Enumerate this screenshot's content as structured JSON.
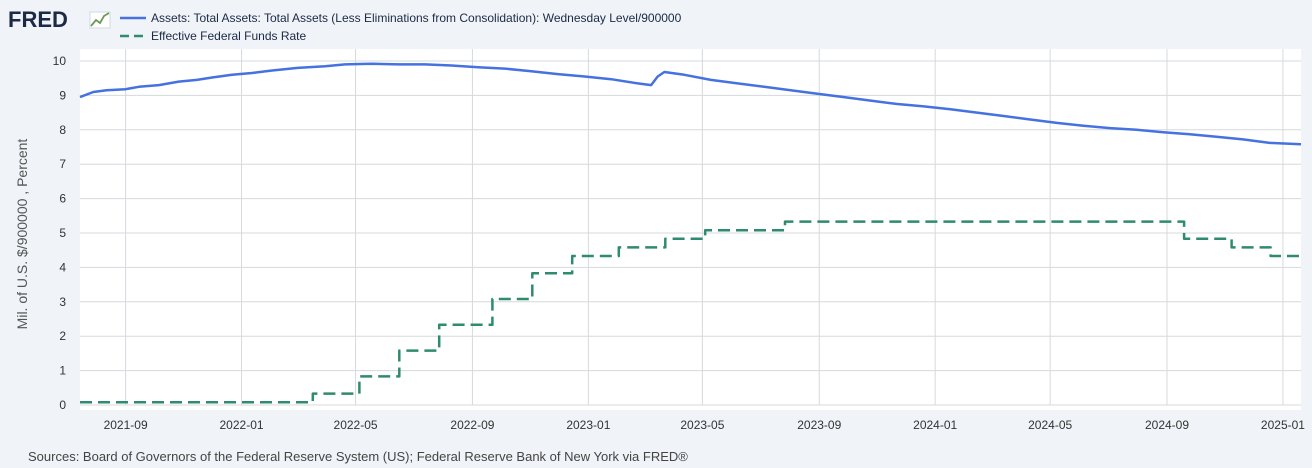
{
  "logo": {
    "text": "FRED"
  },
  "legend": [
    {
      "label": "Assets: Total Assets: Total Assets (Less Eliminations from Consolidation): Wednesday Level/900000",
      "color": "#4572e0",
      "style": "solid"
    },
    {
      "label": "Effective Federal Funds Rate",
      "color": "#2e8b6f",
      "style": "dashed"
    }
  ],
  "source_text": "Sources: Board of Governors of the Federal Reserve System (US); Federal Reserve Bank of New York via FRED®",
  "chart_data": {
    "type": "line",
    "ylabel": "Mil. of U.S. $/900000 , Percent",
    "ylim": [
      0,
      10
    ],
    "yticks": [
      0,
      1,
      2,
      3,
      4,
      5,
      6,
      7,
      8,
      9,
      10
    ],
    "xlim": [
      "2021-07-15",
      "2025-01-20"
    ],
    "xticks": [
      "2021-09",
      "2022-01",
      "2022-05",
      "2022-09",
      "2023-01",
      "2023-05",
      "2023-09",
      "2024-01",
      "2024-05",
      "2024-09",
      "2025-01"
    ],
    "grid": true,
    "legend_position": "top-left",
    "series": [
      {
        "name": "Assets: Total Assets: Total Assets (Less Eliminations from Consolidation): Wednesday Level/900000",
        "style": "solid",
        "color": "#4572e0",
        "points": [
          [
            "2021-07-15",
            8.95
          ],
          [
            "2021-07-29",
            9.1
          ],
          [
            "2021-08-12",
            9.15
          ],
          [
            "2021-09-01",
            9.18
          ],
          [
            "2021-09-15",
            9.25
          ],
          [
            "2021-10-06",
            9.3
          ],
          [
            "2021-10-27",
            9.4
          ],
          [
            "2021-11-15",
            9.45
          ],
          [
            "2021-12-01",
            9.52
          ],
          [
            "2021-12-22",
            9.6
          ],
          [
            "2022-01-12",
            9.65
          ],
          [
            "2022-02-01",
            9.72
          ],
          [
            "2022-03-01",
            9.8
          ],
          [
            "2022-03-30",
            9.85
          ],
          [
            "2022-04-20",
            9.9
          ],
          [
            "2022-05-18",
            9.92
          ],
          [
            "2022-06-15",
            9.9
          ],
          [
            "2022-07-13",
            9.9
          ],
          [
            "2022-08-10",
            9.87
          ],
          [
            "2022-09-07",
            9.82
          ],
          [
            "2022-10-05",
            9.78
          ],
          [
            "2022-11-02",
            9.7
          ],
          [
            "2022-11-30",
            9.62
          ],
          [
            "2022-12-28",
            9.55
          ],
          [
            "2023-01-25",
            9.47
          ],
          [
            "2023-02-22",
            9.35
          ],
          [
            "2023-03-08",
            9.3
          ],
          [
            "2023-03-15",
            9.55
          ],
          [
            "2023-03-22",
            9.68
          ],
          [
            "2023-04-12",
            9.6
          ],
          [
            "2023-05-10",
            9.45
          ],
          [
            "2023-06-07",
            9.35
          ],
          [
            "2023-07-05",
            9.25
          ],
          [
            "2023-08-02",
            9.15
          ],
          [
            "2023-08-30",
            9.05
          ],
          [
            "2023-09-27",
            8.95
          ],
          [
            "2023-10-25",
            8.85
          ],
          [
            "2023-11-22",
            8.75
          ],
          [
            "2023-12-20",
            8.68
          ],
          [
            "2024-01-17",
            8.6
          ],
          [
            "2024-02-14",
            8.5
          ],
          [
            "2024-03-13",
            8.4
          ],
          [
            "2024-04-10",
            8.3
          ],
          [
            "2024-05-08",
            8.2
          ],
          [
            "2024-06-05",
            8.12
          ],
          [
            "2024-07-03",
            8.05
          ],
          [
            "2024-07-31",
            8.0
          ],
          [
            "2024-08-28",
            7.93
          ],
          [
            "2024-09-25",
            7.87
          ],
          [
            "2024-10-23",
            7.8
          ],
          [
            "2024-11-20",
            7.72
          ],
          [
            "2024-12-18",
            7.62
          ],
          [
            "2025-01-20",
            7.58
          ]
        ]
      },
      {
        "name": "Effective Federal Funds Rate",
        "style": "dashed",
        "color": "#2e8b6f",
        "step": true,
        "points": [
          [
            "2021-07-15",
            0.08
          ],
          [
            "2022-03-17",
            0.33
          ],
          [
            "2022-05-05",
            0.83
          ],
          [
            "2022-06-16",
            1.58
          ],
          [
            "2022-07-28",
            2.33
          ],
          [
            "2022-09-22",
            3.08
          ],
          [
            "2022-11-03",
            3.83
          ],
          [
            "2022-12-15",
            4.33
          ],
          [
            "2023-02-02",
            4.58
          ],
          [
            "2023-03-23",
            4.83
          ],
          [
            "2023-05-04",
            5.08
          ],
          [
            "2023-07-27",
            5.33
          ],
          [
            "2024-09-19",
            4.83
          ],
          [
            "2024-11-08",
            4.58
          ],
          [
            "2024-12-19",
            4.33
          ],
          [
            "2025-01-20",
            4.33
          ]
        ]
      }
    ]
  }
}
